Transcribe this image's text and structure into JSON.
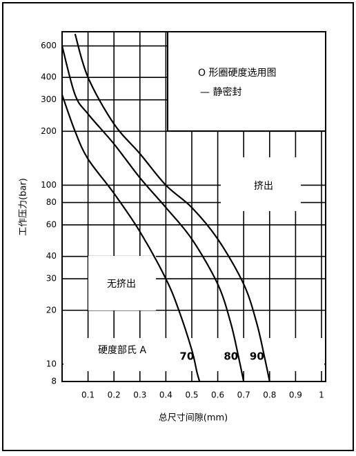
{
  "chart_data": {
    "type": "line",
    "title": "O 形圈硬度选用图",
    "subtitle": "— 静密封",
    "x_label": "总尺寸间隙(mm)",
    "y_label": "工作压力(bar)",
    "legend_title": "硬度部氏 A",
    "annotations": [
      "挤出",
      "无挤出"
    ],
    "log_y": true,
    "grid": true,
    "xlim": [
      0,
      1.0
    ],
    "ylim": [
      8,
      720
    ],
    "xticks": [
      0.1,
      0.2,
      0.3,
      0.4,
      0.5,
      0.6,
      0.7,
      0.8,
      0.9,
      1.0
    ],
    "yticks": [
      600,
      400,
      300,
      200,
      100,
      80,
      60,
      40,
      30,
      20,
      10,
      8
    ],
    "series": [
      {
        "name": "70",
        "color": "#000000",
        "x": [
          0,
          0.05,
          0.1,
          0.2,
          0.3,
          0.4,
          0.45,
          0.5,
          0.52,
          0.53
        ],
        "values": [
          320,
          200,
          140,
          90,
          55,
          30,
          20,
          12,
          9,
          8
        ]
      },
      {
        "name": "80",
        "color": "#000000",
        "x": [
          0,
          0.05,
          0.1,
          0.2,
          0.3,
          0.4,
          0.5,
          0.6,
          0.65,
          0.68,
          0.7
        ],
        "values": [
          600,
          320,
          250,
          170,
          110,
          75,
          50,
          28,
          17,
          11,
          8
        ]
      },
      {
        "name": "90",
        "color": "#000000",
        "x": [
          0.05,
          0.1,
          0.2,
          0.3,
          0.4,
          0.5,
          0.6,
          0.7,
          0.75,
          0.78,
          0.8
        ],
        "values": [
          700,
          400,
          220,
          150,
          100,
          75,
          50,
          28,
          17,
          11,
          8
        ]
      }
    ]
  }
}
